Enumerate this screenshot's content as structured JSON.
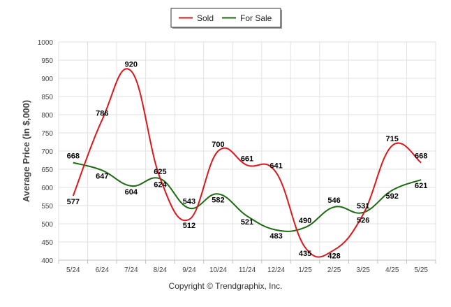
{
  "chart_data": {
    "type": "line",
    "categories": [
      "5/24",
      "6/24",
      "7/24",
      "8/24",
      "9/24",
      "10/24",
      "11/24",
      "12/24",
      "1/25",
      "2/25",
      "3/25",
      "4/25",
      "5/25"
    ],
    "series": [
      {
        "name": "Sold",
        "color": "#d9181d",
        "values": [
          577,
          786,
          920,
          625,
          512,
          700,
          661,
          641,
          435,
          428,
          526,
          715,
          668
        ]
      },
      {
        "name": "For Sale",
        "color": "#1d6a12",
        "values": [
          668,
          647,
          604,
          624,
          543,
          582,
          521,
          483,
          490,
          546,
          531,
          592,
          621
        ]
      }
    ],
    "ylabel": "Average Price (in $,000)",
    "ylim": [
      400,
      1000
    ],
    "yticks": [
      400,
      450,
      500,
      550,
      600,
      650,
      700,
      750,
      800,
      850,
      900,
      950,
      1000
    ],
    "grid": true,
    "legend": "top-center",
    "credit": "Copyright © Trendgraphix, Inc."
  }
}
